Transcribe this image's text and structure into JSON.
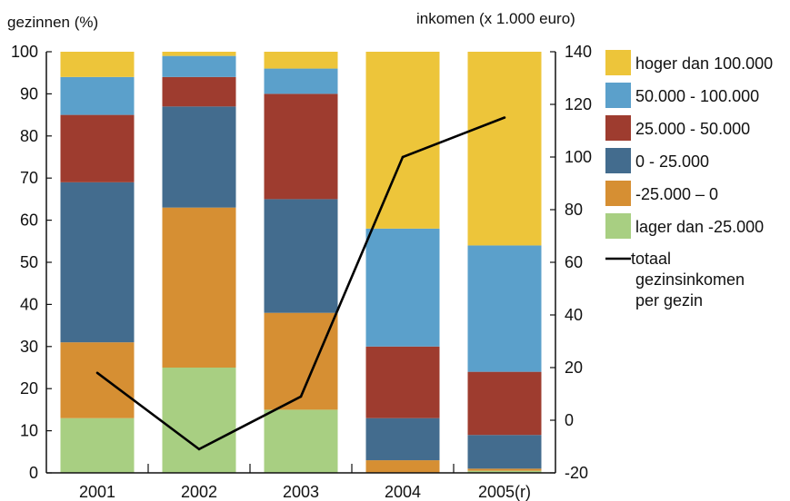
{
  "chart_data": {
    "type": "bar",
    "stacked": true,
    "categories": [
      "2001",
      "2002",
      "2003",
      "2004",
      "2005(r)"
    ],
    "left_axis": {
      "label": "gezinnen (%)",
      "ylim": [
        0,
        100
      ],
      "ticks": [
        "0",
        "10",
        "20",
        "30",
        "40",
        "50",
        "60",
        "70",
        "80",
        "90",
        "100"
      ]
    },
    "right_axis": {
      "label": "inkomen (x 1.000 euro)",
      "ylim": [
        -20,
        140
      ],
      "ticks": [
        "-20",
        "0",
        "20",
        "40",
        "60",
        "80",
        "100",
        "120",
        "140"
      ]
    },
    "series": [
      {
        "name": "lager dan -25.000",
        "color": "#a8cf82",
        "values": [
          13,
          25,
          15,
          0,
          0.5
        ]
      },
      {
        "name": "-25.000 – 0",
        "color": "#d68f33",
        "values": [
          18,
          38,
          23,
          3,
          0.5
        ]
      },
      {
        "name": "0 - 25.000",
        "color": "#436c8e",
        "values": [
          38,
          24,
          27,
          10,
          8
        ]
      },
      {
        "name": "25.000 - 50.000",
        "color": "#9e3c2f",
        "values": [
          16,
          7,
          25,
          17,
          15
        ]
      },
      {
        "name": "50.000 - 100.000",
        "color": "#5ba0cb",
        "values": [
          9,
          5,
          6,
          28,
          30
        ]
      },
      {
        "name": "hoger dan 100.000",
        "color": "#edc53a",
        "values": [
          6,
          1,
          4,
          42,
          46
        ]
      }
    ],
    "line_series": {
      "name": "totaal gezinsinkomen per gezin",
      "legend_lines": [
        "totaal",
        "gezinsinkomen",
        "per gezin"
      ],
      "color": "#000000",
      "axis": "right",
      "values": [
        18,
        -11,
        9,
        100,
        115
      ]
    },
    "legend_order": [
      "hoger dan 100.000",
      "50.000 - 100.000",
      "25.000 - 50.000",
      "0 - 25.000",
      "-25.000 – 0",
      "lager dan -25.000"
    ],
    "legend_position": "right",
    "grid": false
  }
}
